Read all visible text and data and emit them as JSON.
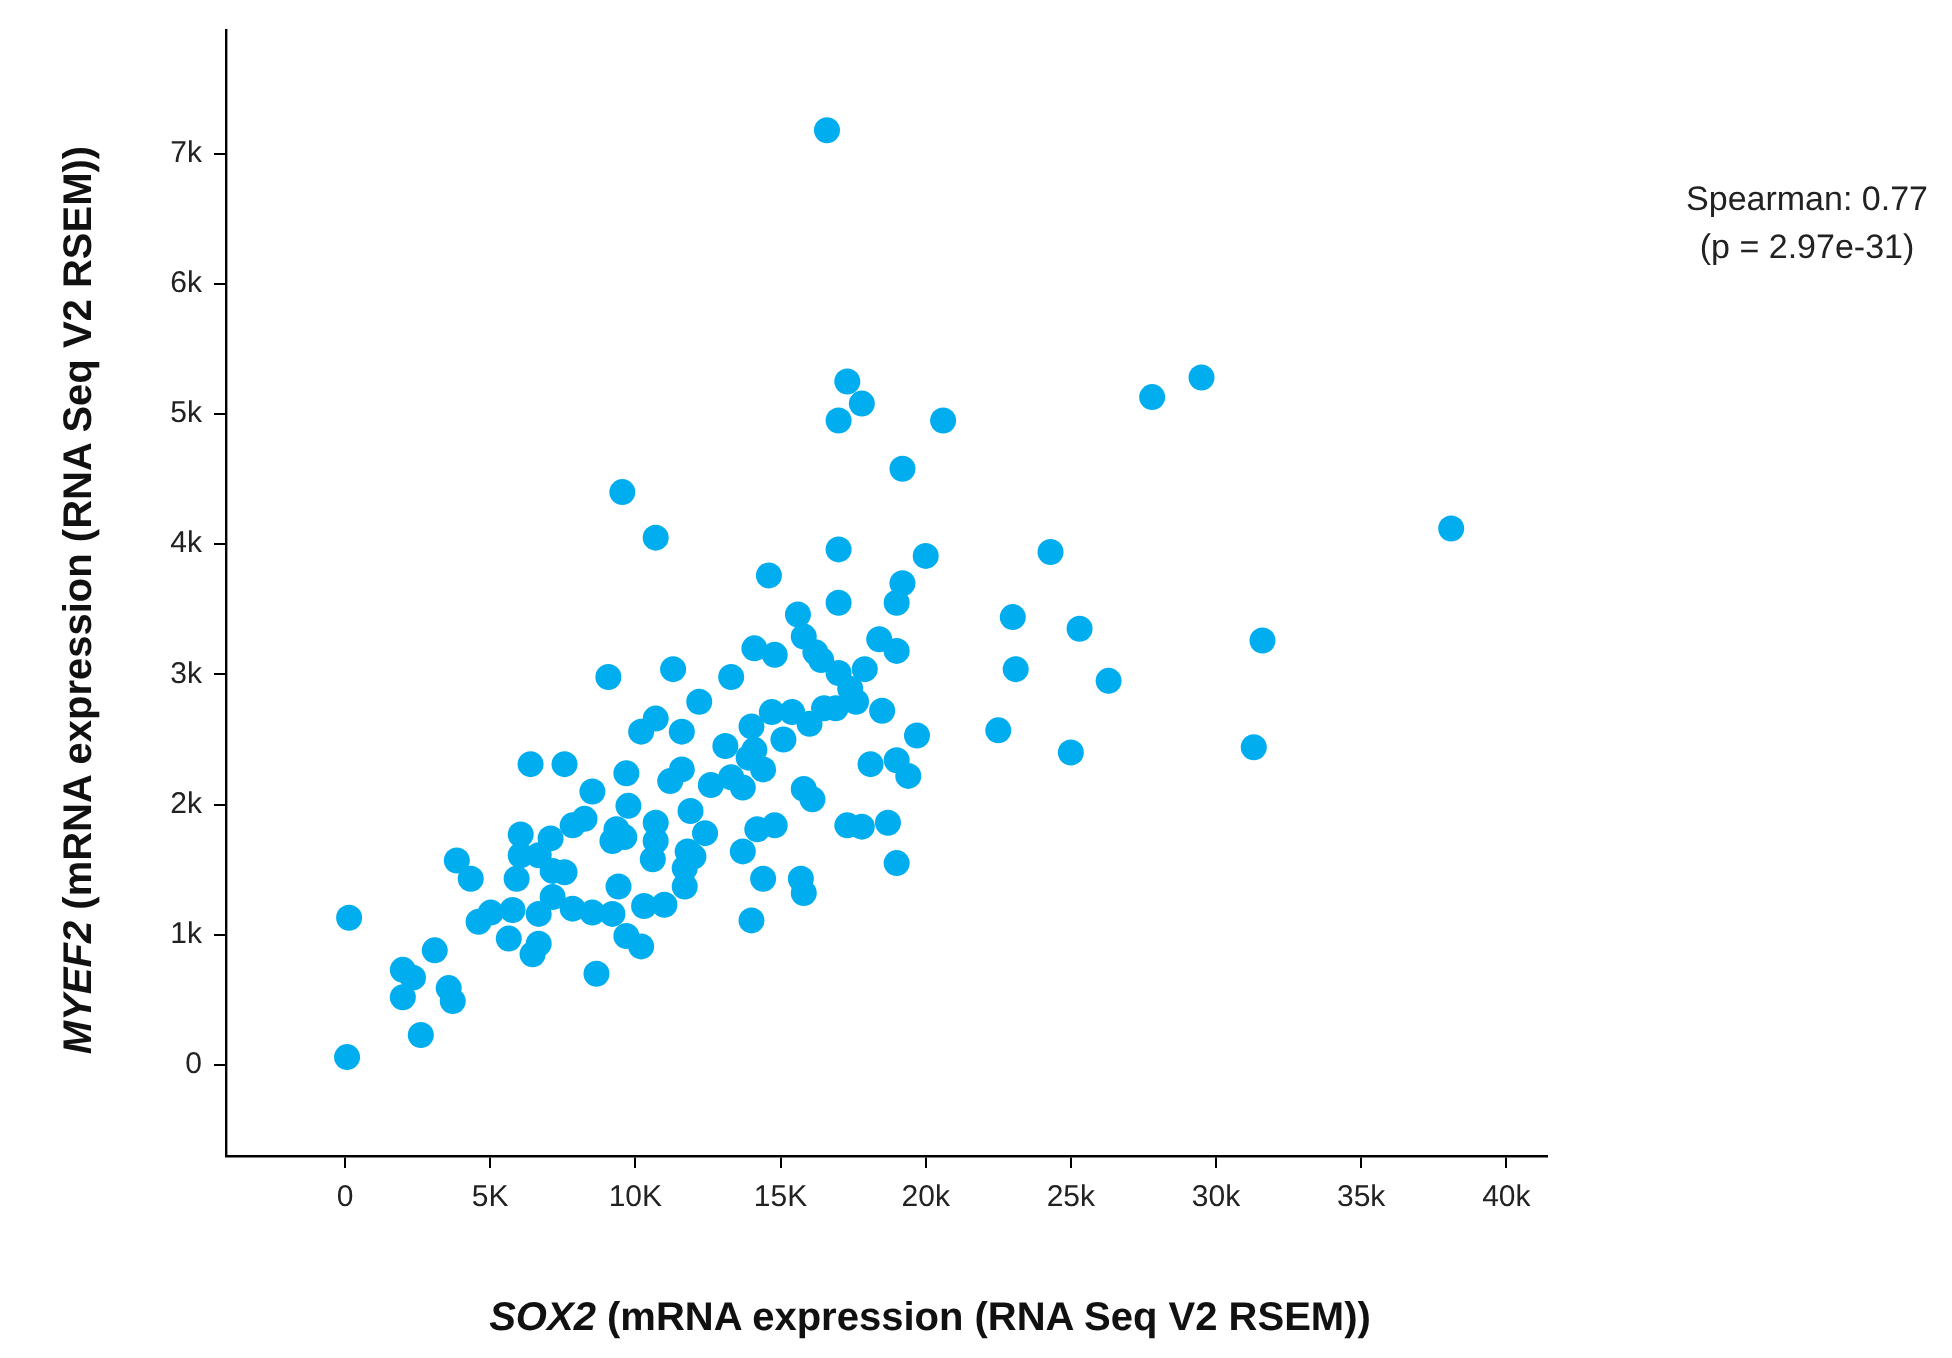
{
  "chart_data": {
    "type": "scatter",
    "xlabel": "SOX2 (mRNA expression (RNA Seq V2 RSEM))",
    "ylabel": "MYEF2 (mRNA expression (RNA Seq V2 RSEM))",
    "annotations": [
      "Spearman: 0.77",
      "(p = 2.97e-31)"
    ],
    "xlim": [
      -4100,
      41400
    ],
    "ylim": [
      -700,
      7950
    ],
    "xticks": [
      0,
      {
        "value": 5000,
        "label": "5K"
      },
      {
        "value": 10000,
        "label": "10K"
      },
      {
        "value": 15000,
        "label": "15K"
      },
      {
        "value": 20000,
        "label": "20k"
      },
      {
        "value": 25000,
        "label": "25k"
      },
      {
        "value": 30000,
        "label": "30k"
      },
      {
        "value": 35000,
        "label": "35k"
      },
      {
        "value": 40000,
        "label": "40k"
      }
    ],
    "yticks": [
      0,
      {
        "value": 1000,
        "label": "1k"
      },
      {
        "value": 2000,
        "label": "2k"
      },
      {
        "value": 3000,
        "label": "3k"
      },
      {
        "value": 4000,
        "label": "4k"
      },
      {
        "value": 5000,
        "label": "5k"
      },
      {
        "value": 6000,
        "label": "6k"
      },
      {
        "value": 7000,
        "label": "7k"
      }
    ],
    "grid": false,
    "legend": false,
    "marker": "circle",
    "series": [
      {
        "color": "#00aeef",
        "x": [
          16600,
          17300,
          17800,
          17000,
          20600,
          27800,
          29500,
          19200,
          9550,
          10700,
          38100,
          14600,
          17000,
          20000,
          24300,
          19200,
          17000,
          19000,
          15600,
          23000,
          25300,
          31600,
          23100,
          26300,
          22500,
          25000,
          31300,
          19700,
          15800,
          18400,
          19000,
          16200,
          16400,
          14100,
          14800,
          9070,
          11300,
          13300,
          12200,
          17000,
          17900,
          17400,
          17600,
          14700,
          15400,
          16500,
          16900,
          16000,
          18500,
          10700,
          10200,
          11600,
          14000,
          13100,
          15100,
          14100,
          13900,
          14400,
          18100,
          19000,
          19400,
          6390,
          7560,
          9690,
          11600,
          11200,
          12600,
          13300,
          13700,
          8520,
          9760,
          11900,
          15800,
          16100,
          8250,
          7840,
          10700,
          9350,
          7080,
          6050,
          9210,
          9620,
          10700,
          12400,
          14200,
          14800,
          17300,
          17800,
          18700,
          6050,
          6670,
          10600,
          11800,
          12000,
          13700,
          3850,
          4330,
          5910,
          7150,
          7560,
          11700,
          9420,
          11700,
          14400,
          15700,
          15800,
          19000,
          7150,
          7840,
          8520,
          9210,
          6670,
          5770,
          5020,
          4600,
          10300,
          11000,
          14000,
          140,
          5640,
          9690,
          10200,
          6670,
          6460,
          8660,
          3090,
          1990,
          2340,
          3570,
          3710,
          1990,
          2610,
          70
        ],
        "values": [
          7180,
          5250,
          5080,
          4950,
          4950,
          5130,
          5280,
          4580,
          4400,
          4050,
          4120,
          3760,
          3960,
          3910,
          3940,
          3700,
          3550,
          3550,
          3460,
          3440,
          3350,
          3260,
          3040,
          2950,
          2570,
          2400,
          2440,
          2530,
          3290,
          3270,
          3180,
          3170,
          3110,
          3200,
          3150,
          2980,
          3040,
          2980,
          2790,
          3010,
          3040,
          2890,
          2790,
          2710,
          2710,
          2740,
          2740,
          2620,
          2720,
          2660,
          2560,
          2560,
          2600,
          2450,
          2500,
          2420,
          2360,
          2270,
          2310,
          2340,
          2220,
          2310,
          2310,
          2240,
          2270,
          2180,
          2150,
          2210,
          2130,
          2100,
          1990,
          1950,
          2120,
          2040,
          1890,
          1840,
          1860,
          1810,
          1740,
          1770,
          1720,
          1750,
          1720,
          1780,
          1810,
          1840,
          1840,
          1830,
          1860,
          1610,
          1610,
          1580,
          1640,
          1600,
          1640,
          1570,
          1430,
          1430,
          1490,
          1480,
          1510,
          1370,
          1370,
          1430,
          1430,
          1320,
          1550,
          1290,
          1200,
          1170,
          1160,
          1160,
          1190,
          1170,
          1100,
          1220,
          1230,
          1110,
          1130,
          970,
          990,
          910,
          930,
          850,
          700,
          880,
          730,
          670,
          590,
          490,
          520,
          230,
          60
        ]
      }
    ]
  }
}
